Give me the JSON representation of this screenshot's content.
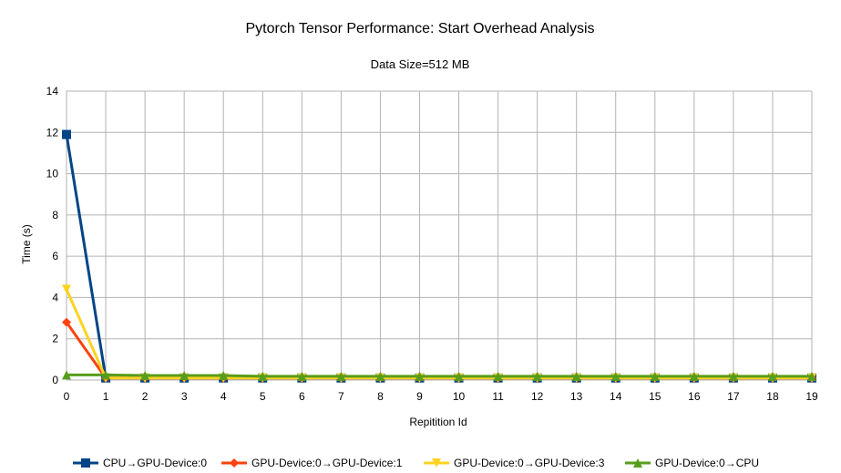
{
  "chart_data": {
    "type": "line",
    "title": "Pytorch Tensor Performance: Start Overhead Analysis",
    "subtitle": "Data Size=512 MB",
    "xlabel": "Repitition Id",
    "ylabel": "Time (s)",
    "x": [
      0,
      1,
      2,
      3,
      4,
      5,
      6,
      7,
      8,
      9,
      10,
      11,
      12,
      13,
      14,
      15,
      16,
      17,
      18,
      19
    ],
    "x_tick_labels": [
      "0",
      "1",
      "2",
      "3",
      "4",
      "5",
      "6",
      "7",
      "8",
      "9",
      "10",
      "11",
      "12",
      "13",
      "14",
      "15",
      "16",
      "17",
      "18",
      "19"
    ],
    "ylim": [
      0,
      14
    ],
    "y_ticks": [
      0,
      2,
      4,
      6,
      8,
      10,
      12,
      14
    ],
    "y_tick_labels": [
      "0",
      "2",
      "4",
      "6",
      "8",
      "10",
      "12",
      "14"
    ],
    "grid": true,
    "legend_position": "bottom",
    "series": [
      {
        "name": "CPU→GPU-Device:0",
        "color": "#004586",
        "marker": "square",
        "values": [
          11.9,
          0.1,
          0.1,
          0.1,
          0.1,
          0.1,
          0.1,
          0.1,
          0.1,
          0.1,
          0.1,
          0.1,
          0.1,
          0.1,
          0.1,
          0.1,
          0.1,
          0.1,
          0.1,
          0.1
        ]
      },
      {
        "name": "GPU-Device:0→GPU-Device:1",
        "color": "#ff420e",
        "marker": "diamond",
        "values": [
          2.8,
          0.1,
          0.1,
          0.1,
          0.1,
          0.1,
          0.1,
          0.1,
          0.1,
          0.1,
          0.1,
          0.1,
          0.1,
          0.1,
          0.1,
          0.1,
          0.1,
          0.1,
          0.1,
          0.1
        ]
      },
      {
        "name": "GPU-Device:0→GPU-Device:3",
        "color": "#ffd320",
        "marker": "triangle-down",
        "values": [
          4.4,
          0.1,
          0.1,
          0.1,
          0.1,
          0.1,
          0.1,
          0.1,
          0.1,
          0.1,
          0.1,
          0.1,
          0.1,
          0.1,
          0.1,
          0.1,
          0.1,
          0.1,
          0.1,
          0.1
        ]
      },
      {
        "name": "GPU-Device:0→CPU",
        "color": "#579d1c",
        "marker": "triangle-up",
        "values": [
          0.25,
          0.25,
          0.22,
          0.22,
          0.22,
          0.18,
          0.18,
          0.18,
          0.18,
          0.18,
          0.18,
          0.18,
          0.18,
          0.18,
          0.18,
          0.18,
          0.18,
          0.18,
          0.18,
          0.18
        ]
      }
    ]
  }
}
